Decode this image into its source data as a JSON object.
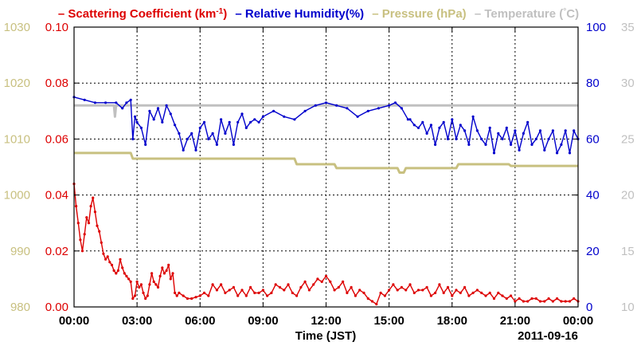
{
  "chart_data": {
    "type": "line",
    "legend": {
      "placement": "top",
      "entries": [
        {
          "prefix": "–",
          "label": "Scattering Coefficient (km",
          "sup": "-1",
          "suffix": ")",
          "color": "#dd0000"
        },
        {
          "prefix": "–",
          "label": "Relative Humidity(%)",
          "sup": "",
          "suffix": "",
          "color": "#0000cc"
        },
        {
          "prefix": "–",
          "label": "Pressure (hPa)",
          "sup": "",
          "suffix": "",
          "color": "#c8c080"
        },
        {
          "prefix": "–",
          "label": "Temperature (",
          "sup": "°",
          "suffix": "C)",
          "color": "#c0c0c0"
        }
      ]
    },
    "xlabel": "Time (JST)",
    "date_label": "2011-09-16",
    "x_range": [
      0,
      24
    ],
    "x_ticks": [
      {
        "value": 0,
        "label": "00:00"
      },
      {
        "value": 3,
        "label": "03:00"
      },
      {
        "value": 6,
        "label": "06:00"
      },
      {
        "value": 9,
        "label": "09:00"
      },
      {
        "value": 12,
        "label": "12:00"
      },
      {
        "value": 15,
        "label": "15:00"
      },
      {
        "value": 18,
        "label": "18:00"
      },
      {
        "value": 21,
        "label": "21:00"
      },
      {
        "value": 24,
        "label": "00:00"
      }
    ],
    "grid": true,
    "axes": {
      "pressure": {
        "side": "left-outer",
        "range": [
          980,
          1030
        ],
        "ticks": [
          "980",
          "990",
          "1000",
          "1010",
          "1020",
          "1030"
        ],
        "color": "#c8c080"
      },
      "scattering": {
        "side": "left-inner",
        "range": [
          0,
          0.1
        ],
        "ticks": [
          "0.00",
          "0.02",
          "0.04",
          "0.06",
          "0.08",
          "0.10"
        ],
        "color": "#dd0000"
      },
      "humidity": {
        "side": "right-inner",
        "range": [
          0,
          100
        ],
        "ticks": [
          "0",
          "20",
          "40",
          "60",
          "80",
          "100"
        ],
        "color": "#0000cc"
      },
      "temperature": {
        "side": "right-outer",
        "range": [
          10,
          35
        ],
        "ticks": [
          "10",
          "15",
          "20",
          "25",
          "30",
          "35"
        ],
        "color": "#c0c0c0"
      }
    },
    "series": [
      {
        "name": "Scattering Coefficient",
        "axis": "scattering",
        "color": "#dd0000",
        "x": [
          0.0,
          0.1,
          0.2,
          0.3,
          0.4,
          0.5,
          0.6,
          0.7,
          0.8,
          0.9,
          1.0,
          1.1,
          1.2,
          1.3,
          1.4,
          1.5,
          1.6,
          1.7,
          1.8,
          1.9,
          2.0,
          2.1,
          2.2,
          2.3,
          2.4,
          2.5,
          2.6,
          2.7,
          2.8,
          2.9,
          3.0,
          3.1,
          3.2,
          3.3,
          3.4,
          3.5,
          3.6,
          3.7,
          3.8,
          3.9,
          4.0,
          4.1,
          4.2,
          4.3,
          4.4,
          4.5,
          4.6,
          4.7,
          4.8,
          4.9,
          5.0,
          5.2,
          5.4,
          5.6,
          5.8,
          6.0,
          6.2,
          6.4,
          6.6,
          6.8,
          7.0,
          7.2,
          7.4,
          7.6,
          7.8,
          8.0,
          8.2,
          8.4,
          8.6,
          8.8,
          9.0,
          9.2,
          9.4,
          9.6,
          9.8,
          10.0,
          10.2,
          10.4,
          10.6,
          10.8,
          11.0,
          11.2,
          11.4,
          11.6,
          11.8,
          12.0,
          12.2,
          12.4,
          12.6,
          12.8,
          13.0,
          13.2,
          13.4,
          13.6,
          13.8,
          14.0,
          14.2,
          14.4,
          14.6,
          14.8,
          15.0,
          15.2,
          15.4,
          15.6,
          15.8,
          16.0,
          16.2,
          16.4,
          16.6,
          16.8,
          17.0,
          17.2,
          17.4,
          17.6,
          17.8,
          18.0,
          18.2,
          18.4,
          18.6,
          18.8,
          19.0,
          19.2,
          19.4,
          19.6,
          19.8,
          20.0,
          20.2,
          20.4,
          20.6,
          20.8,
          21.0,
          21.2,
          21.4,
          21.6,
          21.8,
          22.0,
          22.2,
          22.4,
          22.6,
          22.8,
          23.0,
          23.2,
          23.4,
          23.6,
          23.8,
          24.0
        ],
        "values": [
          0.044,
          0.036,
          0.03,
          0.024,
          0.02,
          0.026,
          0.032,
          0.03,
          0.036,
          0.039,
          0.034,
          0.029,
          0.027,
          0.023,
          0.019,
          0.017,
          0.018,
          0.016,
          0.015,
          0.013,
          0.012,
          0.013,
          0.017,
          0.014,
          0.012,
          0.011,
          0.01,
          0.009,
          0.003,
          0.004,
          0.009,
          0.007,
          0.008,
          0.005,
          0.003,
          0.004,
          0.008,
          0.012,
          0.009,
          0.008,
          0.007,
          0.011,
          0.014,
          0.012,
          0.013,
          0.015,
          0.01,
          0.012,
          0.005,
          0.004,
          0.005,
          0.004,
          0.003,
          0.003,
          0.0035,
          0.004,
          0.005,
          0.004,
          0.008,
          0.006,
          0.008,
          0.005,
          0.006,
          0.007,
          0.004,
          0.006,
          0.004,
          0.007,
          0.005,
          0.005,
          0.006,
          0.004,
          0.005,
          0.008,
          0.007,
          0.006,
          0.008,
          0.005,
          0.004,
          0.007,
          0.009,
          0.006,
          0.008,
          0.01,
          0.009,
          0.011,
          0.009,
          0.006,
          0.007,
          0.009,
          0.005,
          0.007,
          0.004,
          0.006,
          0.005,
          0.003,
          0.002,
          0.001,
          0.005,
          0.004,
          0.006,
          0.008,
          0.006,
          0.007,
          0.006,
          0.008,
          0.005,
          0.006,
          0.006,
          0.007,
          0.004,
          0.005,
          0.008,
          0.005,
          0.007,
          0.004,
          0.006,
          0.005,
          0.007,
          0.004,
          0.005,
          0.006,
          0.005,
          0.004,
          0.005,
          0.003,
          0.005,
          0.004,
          0.003,
          0.004,
          0.002,
          0.003,
          0.002,
          0.002,
          0.003,
          0.003,
          0.002,
          0.002,
          0.003,
          0.002,
          0.003,
          0.002,
          0.002,
          0.002,
          0.003,
          0.002
        ]
      },
      {
        "name": "Relative Humidity",
        "axis": "humidity",
        "color": "#0000cc",
        "x": [
          0.0,
          0.5,
          1.0,
          1.5,
          2.0,
          2.3,
          2.5,
          2.7,
          2.8,
          2.9,
          3.0,
          3.2,
          3.4,
          3.6,
          3.8,
          4.0,
          4.2,
          4.4,
          4.6,
          4.8,
          5.0,
          5.2,
          5.4,
          5.6,
          5.8,
          6.0,
          6.2,
          6.4,
          6.6,
          6.8,
          7.0,
          7.2,
          7.4,
          7.6,
          7.8,
          8.0,
          8.2,
          8.4,
          8.6,
          8.8,
          9.0,
          9.5,
          10.0,
          10.5,
          11.0,
          11.5,
          12.0,
          12.5,
          13.0,
          13.5,
          14.0,
          14.5,
          15.0,
          15.3,
          15.6,
          15.9,
          16.0,
          16.2,
          16.4,
          16.6,
          16.8,
          17.0,
          17.2,
          17.4,
          17.6,
          17.8,
          18.0,
          18.2,
          18.4,
          18.6,
          18.8,
          19.0,
          19.2,
          19.4,
          19.6,
          19.8,
          20.0,
          20.2,
          20.4,
          20.6,
          20.8,
          21.0,
          21.2,
          21.4,
          21.6,
          21.8,
          22.0,
          22.2,
          22.4,
          22.6,
          22.8,
          23.0,
          23.2,
          23.4,
          23.6,
          23.8,
          24.0
        ],
        "values": [
          75,
          74,
          73,
          73,
          73,
          71,
          73,
          74,
          60,
          68,
          66,
          64,
          58,
          70,
          67,
          71,
          66,
          72,
          69,
          65,
          62,
          56,
          60,
          62,
          56,
          64,
          66,
          60,
          62,
          58,
          67,
          62,
          66,
          58,
          66,
          69,
          64,
          66,
          67,
          66,
          68,
          70,
          68,
          67,
          70,
          72,
          73,
          72,
          71,
          68,
          70,
          71,
          72,
          73,
          71,
          67,
          67,
          65,
          64,
          66,
          62,
          65,
          58,
          64,
          66,
          60,
          67,
          60,
          65,
          63,
          58,
          68,
          63,
          60,
          58,
          64,
          55,
          62,
          60,
          64,
          58,
          63,
          56,
          62,
          66,
          58,
          60,
          63,
          56,
          60,
          63,
          55,
          58,
          63,
          55,
          63,
          60
        ]
      },
      {
        "name": "Pressure",
        "axis": "pressure",
        "color": "#c8c080",
        "x": [
          0.0,
          2.7,
          2.8,
          10.5,
          10.6,
          12.4,
          12.5,
          15.4,
          15.5,
          15.7,
          15.8,
          18.2,
          18.3,
          20.7,
          20.8,
          24.0
        ],
        "values": [
          1007.5,
          1007.5,
          1006.5,
          1006.5,
          1005.5,
          1005.5,
          1004.8,
          1004.8,
          1004.0,
          1004.0,
          1004.8,
          1004.8,
          1005.5,
          1005.5,
          1005.2,
          1005.2
        ]
      },
      {
        "name": "Temperature",
        "axis": "temperature",
        "color": "#c0c0c0",
        "x": [
          0.0,
          1.9,
          1.95,
          2.0,
          2.05,
          24.0
        ],
        "values": [
          28.0,
          28.0,
          27.0,
          28.0,
          28.0,
          28.0
        ]
      }
    ]
  }
}
